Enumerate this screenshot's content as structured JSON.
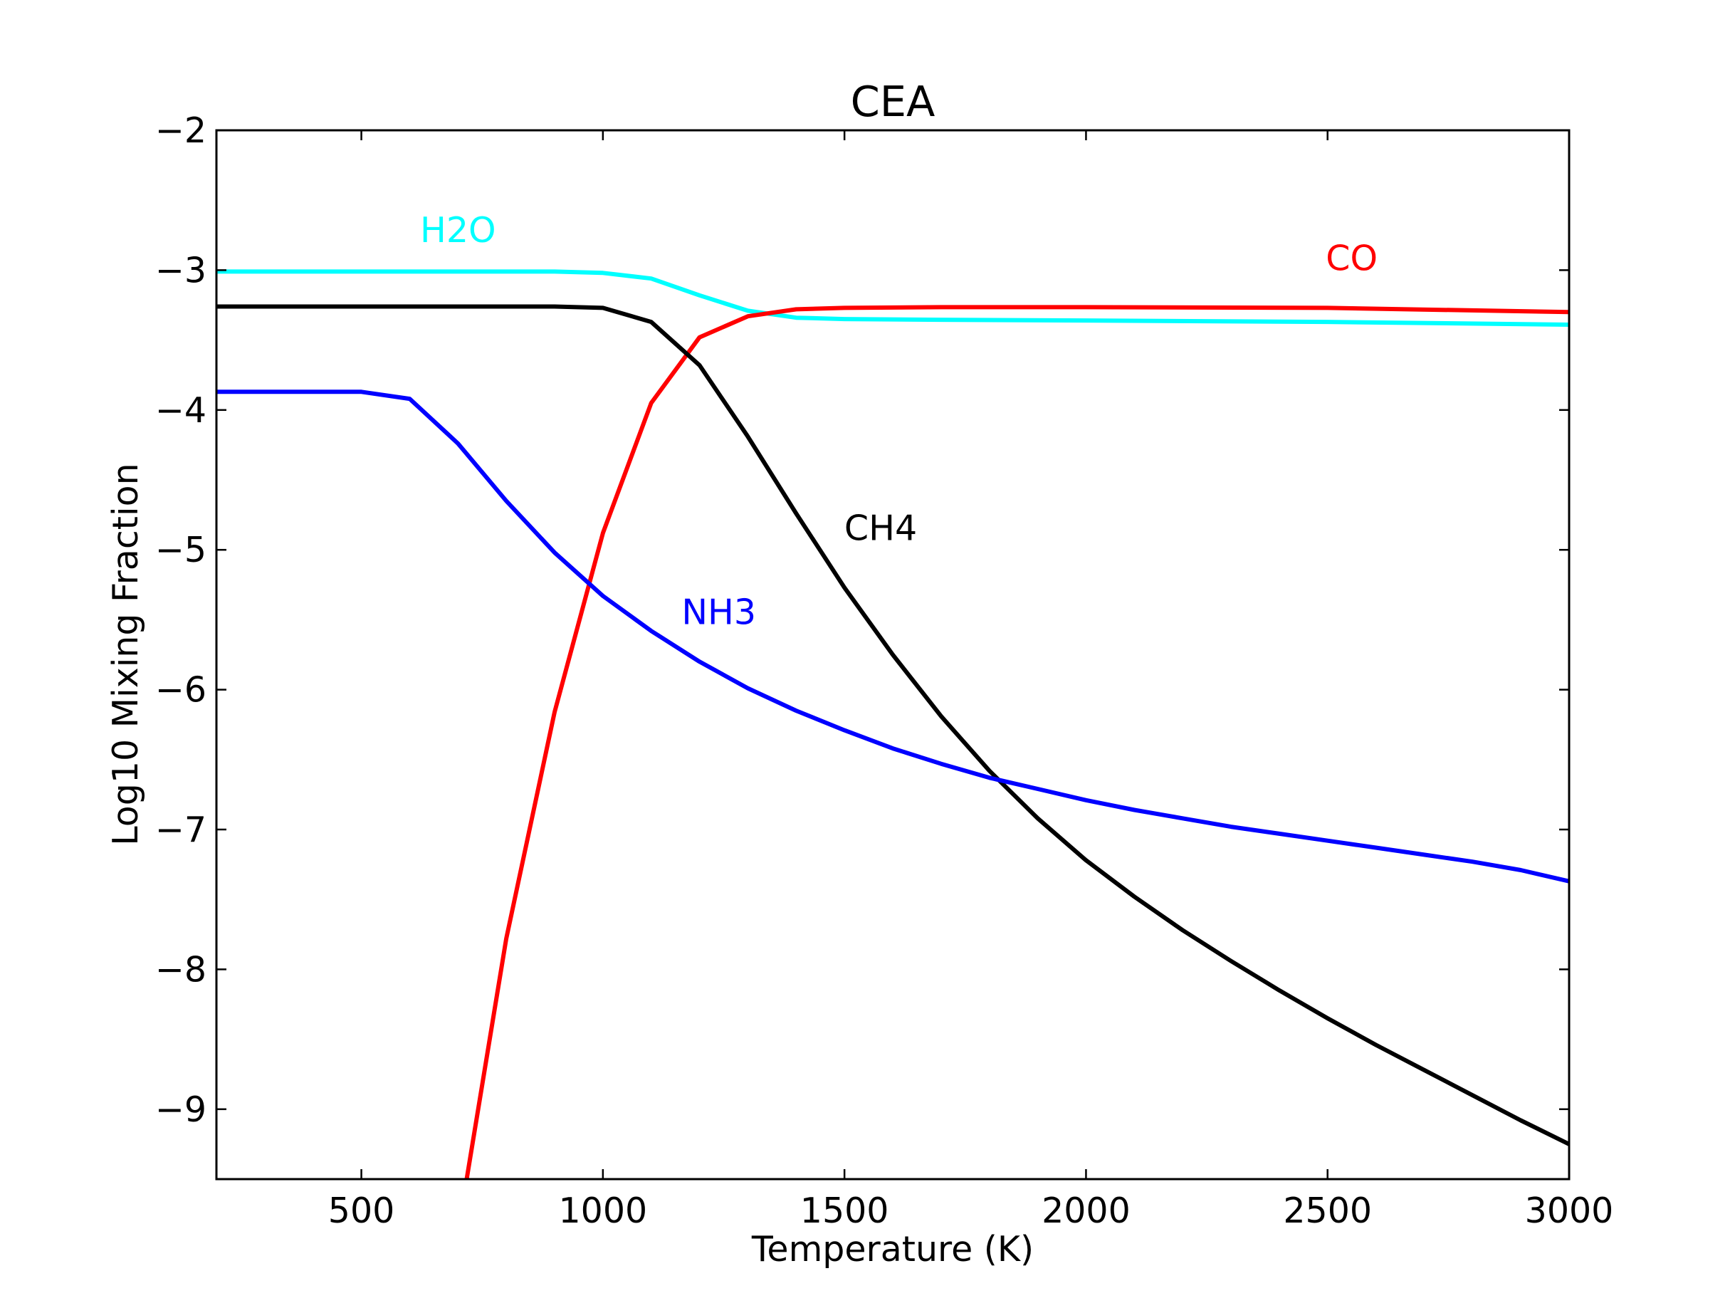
{
  "chart_data": {
    "type": "line",
    "title": "CEA",
    "xlabel": "Temperature (K)",
    "ylabel": "Log10 Mixing Fraction",
    "xlim": [
      200,
      3000
    ],
    "ylim": [
      -9.5,
      -2
    ],
    "xticks": [
      500,
      1000,
      1500,
      2000,
      2500,
      3000
    ],
    "xtick_labels": [
      "500",
      "1000",
      "1500",
      "2000",
      "2500",
      "3000"
    ],
    "yticks": [
      -2,
      -3,
      -4,
      -5,
      -6,
      -7,
      -8,
      -9
    ],
    "ytick_labels": [
      "−2",
      "−3",
      "−4",
      "−5",
      "−6",
      "−7",
      "−8",
      "−9"
    ],
    "grid": false,
    "legend": "none",
    "series": [
      {
        "name": "H2O",
        "color": "#00ffff",
        "label_at": [
          700,
          -2.8
        ],
        "points": [
          [
            200,
            -3.01
          ],
          [
            300,
            -3.01
          ],
          [
            400,
            -3.01
          ],
          [
            500,
            -3.01
          ],
          [
            600,
            -3.01
          ],
          [
            700,
            -3.01
          ],
          [
            800,
            -3.01
          ],
          [
            900,
            -3.01
          ],
          [
            1000,
            -3.02
          ],
          [
            1100,
            -3.06
          ],
          [
            1200,
            -3.18
          ],
          [
            1300,
            -3.29
          ],
          [
            1400,
            -3.34
          ],
          [
            1500,
            -3.35
          ],
          [
            1700,
            -3.355
          ],
          [
            2000,
            -3.36
          ],
          [
            2500,
            -3.37
          ],
          [
            3000,
            -3.39
          ]
        ]
      },
      {
        "name": "CO",
        "color": "#ff0000",
        "label_at": [
          2550,
          -3.0
        ],
        "points": [
          [
            718,
            -9.5
          ],
          [
            800,
            -7.78
          ],
          [
            900,
            -6.16
          ],
          [
            1000,
            -4.88
          ],
          [
            1100,
            -3.95
          ],
          [
            1200,
            -3.48
          ],
          [
            1300,
            -3.33
          ],
          [
            1400,
            -3.28
          ],
          [
            1500,
            -3.27
          ],
          [
            1700,
            -3.265
          ],
          [
            2000,
            -3.265
          ],
          [
            2500,
            -3.27
          ],
          [
            3000,
            -3.3
          ]
        ]
      },
      {
        "name": "CH4",
        "color": "#000000",
        "label_at": [
          1575,
          -4.93
        ],
        "points": [
          [
            200,
            -3.26
          ],
          [
            300,
            -3.26
          ],
          [
            400,
            -3.26
          ],
          [
            500,
            -3.26
          ],
          [
            600,
            -3.26
          ],
          [
            700,
            -3.26
          ],
          [
            800,
            -3.26
          ],
          [
            900,
            -3.26
          ],
          [
            1000,
            -3.27
          ],
          [
            1100,
            -3.37
          ],
          [
            1200,
            -3.68
          ],
          [
            1300,
            -4.19
          ],
          [
            1400,
            -4.74
          ],
          [
            1500,
            -5.27
          ],
          [
            1600,
            -5.75
          ],
          [
            1700,
            -6.19
          ],
          [
            1800,
            -6.58
          ],
          [
            1900,
            -6.92
          ],
          [
            2000,
            -7.22
          ],
          [
            2100,
            -7.48
          ],
          [
            2200,
            -7.72
          ],
          [
            2300,
            -7.94
          ],
          [
            2400,
            -8.15
          ],
          [
            2500,
            -8.35
          ],
          [
            2600,
            -8.54
          ],
          [
            2700,
            -8.72
          ],
          [
            2800,
            -8.9
          ],
          [
            2900,
            -9.08
          ],
          [
            3000,
            -9.25
          ]
        ]
      },
      {
        "name": "NH3",
        "color": "#0000ff",
        "label_at": [
          1240,
          -5.53
        ],
        "points": [
          [
            200,
            -3.87
          ],
          [
            300,
            -3.87
          ],
          [
            400,
            -3.87
          ],
          [
            500,
            -3.87
          ],
          [
            600,
            -3.92
          ],
          [
            700,
            -4.24
          ],
          [
            800,
            -4.65
          ],
          [
            900,
            -5.02
          ],
          [
            1000,
            -5.33
          ],
          [
            1100,
            -5.58
          ],
          [
            1200,
            -5.8
          ],
          [
            1300,
            -5.99
          ],
          [
            1400,
            -6.15
          ],
          [
            1500,
            -6.29
          ],
          [
            1600,
            -6.42
          ],
          [
            1700,
            -6.53
          ],
          [
            1800,
            -6.63
          ],
          [
            1900,
            -6.71
          ],
          [
            2000,
            -6.79
          ],
          [
            2100,
            -6.86
          ],
          [
            2200,
            -6.92
          ],
          [
            2300,
            -6.98
          ],
          [
            2400,
            -7.03
          ],
          [
            2500,
            -7.08
          ],
          [
            2600,
            -7.13
          ],
          [
            2700,
            -7.18
          ],
          [
            2800,
            -7.23
          ],
          [
            2900,
            -7.29
          ],
          [
            3000,
            -7.37
          ]
        ]
      }
    ]
  }
}
